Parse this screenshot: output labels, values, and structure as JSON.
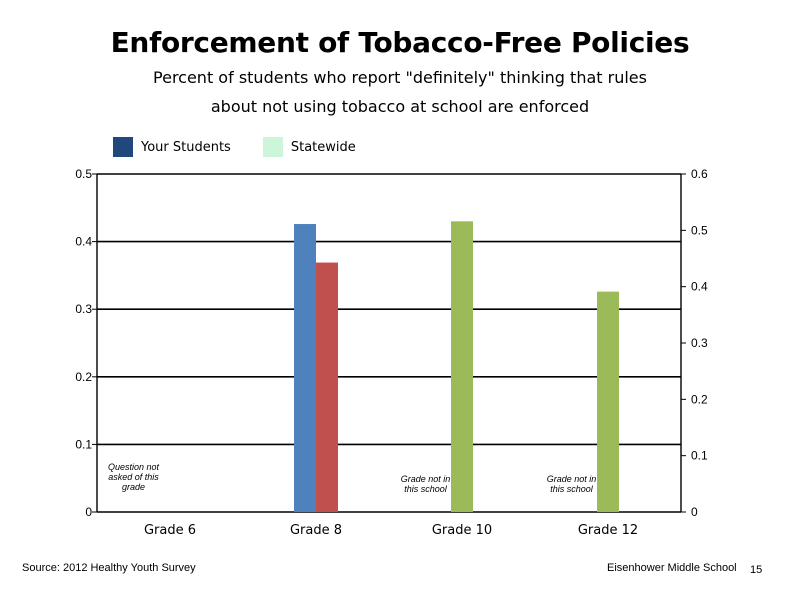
{
  "title": "Enforcement of Tobacco-Free Policies",
  "subtitle_line1": "Percent of students who report \"definitely\" thinking that rules",
  "subtitle_line2": "about not using tobacco at school are enforced",
  "legend": [
    {
      "label": "Your Students",
      "color": "#1f497d"
    },
    {
      "label": "Statewide",
      "color": "#ccf5d9"
    }
  ],
  "footer": {
    "source": "Source: 2012 Healthy Youth Survey",
    "school": "Eisenhower Middle  School",
    "page_number": "15"
  },
  "chart_data": {
    "type": "bar",
    "categories": [
      "Grade 6",
      "Grade 8",
      "Grade 10",
      "Grade 12"
    ],
    "series": [
      {
        "color": "#4f81bd",
        "values": [
          null,
          0.426,
          null,
          null
        ]
      },
      {
        "color": "#c0504d",
        "values": [
          null,
          0.369,
          null,
          null
        ]
      },
      {
        "color": "#9bbb59",
        "values": [
          null,
          null,
          0.43,
          0.326
        ]
      }
    ],
    "ylim": [
      0,
      0.5
    ],
    "yticks": [
      "0",
      "0.1",
      "0.2",
      "0.3",
      "0.4",
      "0.5"
    ],
    "ylim_right": [
      0,
      0.6
    ],
    "yticks_right": [
      "0",
      "0.1",
      "0.2",
      "0.3",
      "0.4",
      "0.5",
      "0.6"
    ],
    "grid": true,
    "annotations": [
      {
        "category_index": 0,
        "lines": [
          "Question not",
          "asked of this",
          "grade"
        ]
      },
      {
        "category_index": 4,
        "lines": [
          "Grade not in",
          "this school"
        ]
      },
      {
        "category_index": 6,
        "lines": [
          "Grade not in",
          "this school"
        ]
      }
    ]
  }
}
